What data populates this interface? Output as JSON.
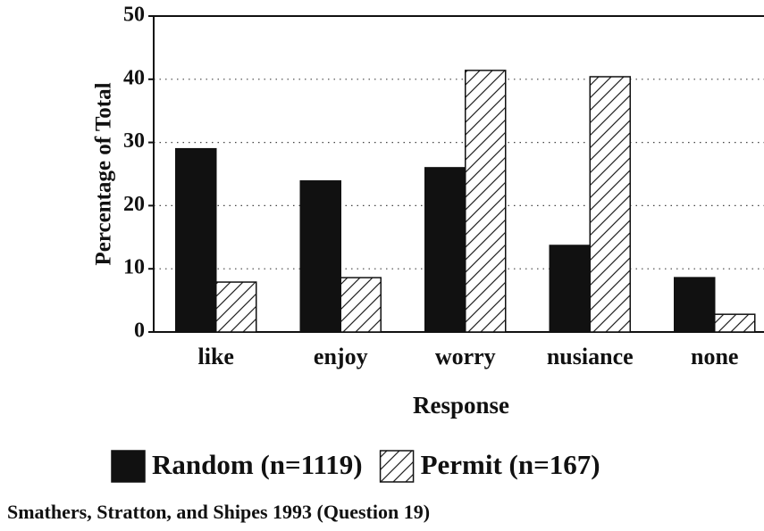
{
  "chart_data": {
    "type": "bar",
    "y_label": "Percentage of Total",
    "x_label": "Response",
    "caption": "Smathers, Stratton, and Shipes 1993 (Question 19)",
    "categories": [
      "like",
      "enjoy",
      "worry",
      "nusiance",
      "none"
    ],
    "series": [
      {
        "name": "Random (n=1119)",
        "color": "#111111",
        "pattern": "solid",
        "values": [
          29,
          23.9,
          26,
          13.7,
          8.6
        ]
      },
      {
        "name": "Permit (n=167)",
        "color": "#111111",
        "pattern": "hatch",
        "values": [
          7.9,
          8.6,
          41.4,
          40.4,
          2.8
        ]
      }
    ],
    "ylim": [
      0,
      50
    ],
    "yticks": [
      0,
      10,
      20,
      30,
      40,
      50
    ],
    "grid": true
  }
}
